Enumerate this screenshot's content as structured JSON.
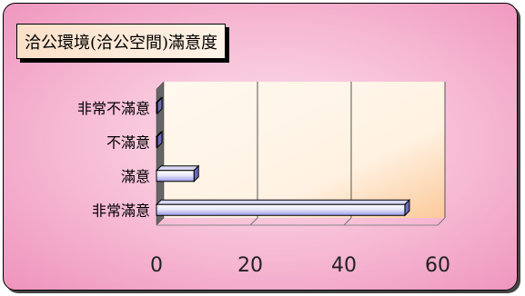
{
  "chart_data": {
    "type": "bar",
    "orientation": "horizontal",
    "title": "洽公環境(洽公空間)滿意度",
    "categories": [
      "非常滿意",
      "滿意",
      "不滿意",
      "非常不滿意"
    ],
    "values": [
      53,
      8,
      0,
      0
    ],
    "xlim": [
      0,
      60
    ],
    "xticks": [
      "0",
      "20",
      "40",
      "60"
    ],
    "grid": true,
    "legend": "none",
    "colors": {
      "bar_light": "#ffffff",
      "bar_dark": "#9a9ae6",
      "plot_bg_start": "#fff8ef",
      "plot_bg_end": "#fbc99a",
      "frame_bg": "#f6b9d3"
    }
  }
}
